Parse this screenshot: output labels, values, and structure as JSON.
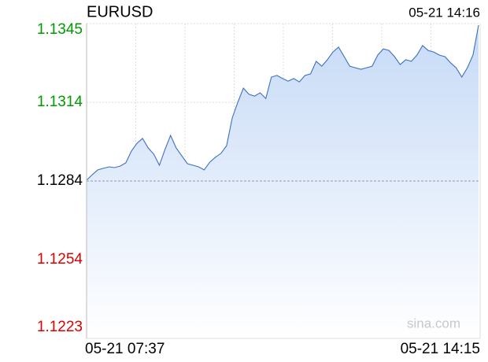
{
  "chart_data": {
    "type": "line",
    "title": "EURUSD",
    "timestamp": "05-21 14:16",
    "watermark": "sina.com",
    "x_labels": [
      "05-21 07:37",
      "05-21 14:15"
    ],
    "values": [
      1.12843,
      1.12864,
      1.12883,
      1.12889,
      1.12895,
      1.12892,
      1.12898,
      1.1291,
      1.12956,
      1.12986,
      1.13005,
      1.12968,
      1.12944,
      1.12901,
      1.12962,
      1.13017,
      1.12968,
      1.12938,
      1.12907,
      1.12901,
      1.12895,
      1.12883,
      1.12913,
      1.12932,
      1.12947,
      1.12977,
      1.13084,
      1.13145,
      1.132,
      1.13176,
      1.13169,
      1.13182,
      1.1316,
      1.13243,
      1.13249,
      1.13237,
      1.13227,
      1.13237,
      1.13224,
      1.13249,
      1.13255,
      1.13304,
      1.13285,
      1.1331,
      1.1334,
      1.13359,
      1.13322,
      1.13285,
      1.13279,
      1.13273,
      1.13279,
      1.13285,
      1.13328,
      1.13352,
      1.13346,
      1.13322,
      1.13291,
      1.1331,
      1.13304,
      1.13328,
      1.13365,
      1.13346,
      1.1334,
      1.13328,
      1.13322,
      1.13298,
      1.13279,
      1.13243,
      1.13279,
      1.13328,
      1.13444
    ],
    "color": "#3d6fbf",
    "reference": 1.1284,
    "up_color": "#009900",
    "down_color": "#dd0000",
    "ylim": [
      1.1223,
      1.1345
    ],
    "yticks": [
      1.1223,
      {
        "value": 1.12535,
        "label": "1.1254"
      },
      1.1284,
      {
        "value": 1.13145,
        "label": "1.1314"
      },
      1.1345
    ],
    "grid": true
  }
}
